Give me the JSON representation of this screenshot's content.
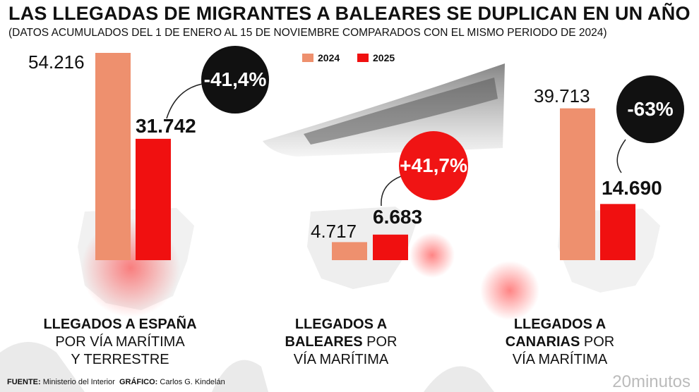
{
  "header": {
    "title": "LAS LLEGADAS DE MIGRANTES A BALEARES SE DUPLICAN EN UN AÑO",
    "subtitle": "(DATOS ACUMULADOS DEL 1 DE ENERO AL 15 DE NOVIEMBRE COMPARADOS CON EL MISMO PERIODO DE 2024)"
  },
  "colors": {
    "y2024": "#ee906e",
    "y2025": "#f01010",
    "badge_dark": "#111111",
    "badge_red": "#f01414"
  },
  "chart_data": {
    "type": "bar",
    "title": "LAS LLEGADAS DE MIGRANTES A BALEARES SE DUPLICAN EN UN AÑO",
    "legend": [
      "2024",
      "2025"
    ],
    "legend_position": "top-center",
    "series": [
      {
        "name": "2024",
        "values": [
          54216,
          4717,
          39713
        ]
      },
      {
        "name": "2025",
        "values": [
          31742,
          6683,
          14690
        ]
      }
    ],
    "panels": [
      {
        "label_bold": "LLEGADOS A ESPAÑA",
        "label_rest_1": "POR VÍA MARÍTIMA",
        "label_rest_2": "Y TERRESTRE",
        "value_2024": "54.216",
        "value_2025": "31.742",
        "change": "-41,4%"
      },
      {
        "label_bold": "LLEGADOS A",
        "label_bold_2": "BALEARES",
        "label_rest_1": "POR",
        "label_rest_2": "VÍA MARÍTIMA",
        "value_2024": "4.717",
        "value_2025": "6.683",
        "change": "+41,7%"
      },
      {
        "label_bold": "LLEGADOS A",
        "label_bold_2": "CANARIAS",
        "label_rest_1": "POR",
        "label_rest_2": "VÍA MARÍTIMA",
        "value_2024": "39.713",
        "value_2025": "14.690",
        "change": "-63%"
      }
    ]
  },
  "footer": {
    "source_key": "FUENTE:",
    "source": "Ministerio del Interior",
    "graphic_key": "GRÁFICO:",
    "graphic": "Carlos G. Kindelán",
    "brand": "20minutos"
  }
}
